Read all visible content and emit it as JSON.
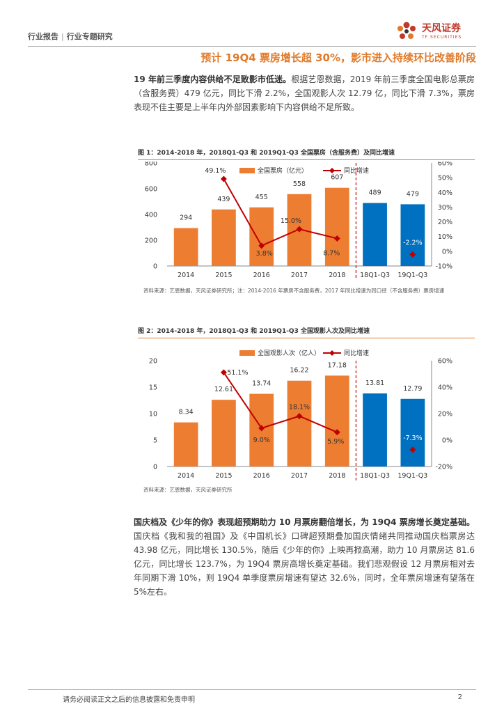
{
  "header": {
    "category": "行业报告",
    "subcategory": "行业专题研究",
    "logo_cn": "天风证券",
    "logo_en": "TF SECURITIES"
  },
  "headline": "预计 19Q4 票房增长超 30%，影市进入持续环比改善阶段",
  "para1": {
    "bold": "19 年前三季度内容供给不足致影市低迷。",
    "text": "根据艺恩数据，2019 年前三季度全国电影总票房（含服务费）479 亿元，同比下滑 2.2%，全国观影人次 12.79 亿，同比下滑 7.3%，票房表现不佳主要是上半年内外部因素影响下内容供给不足所致。"
  },
  "figure1": {
    "title": "图 1：2014-2018 年，2018Q1-Q3 和 2019Q1-Q3 全国票房（含服务费）及同比增速",
    "source": "资料来源：艺恩数据，天风证券研究所；注：2014-2016 年票房不含服务费，2017 年同比增速为同口径（不含服务费）票房增速"
  },
  "figure2": {
    "title": "图 2：2014-2018 年，2018Q1-Q3 和 2019Q1-Q3 全国观影人次及同比增速",
    "source": "资料来源：艺恩数据，天风证券研究所"
  },
  "chart_data": [
    {
      "type": "bar",
      "categories": [
        "2014",
        "2015",
        "2016",
        "2017",
        "2018",
        "18Q1-Q3",
        "19Q1-Q3"
      ],
      "series": [
        {
          "name": "全国票房（亿元）",
          "kind": "bar",
          "axis": "left",
          "values": [
            294,
            439,
            455,
            558,
            607,
            489,
            479
          ],
          "labels": [
            "294",
            "439",
            "455",
            "558",
            "607",
            "489",
            "479"
          ]
        },
        {
          "name": "同比增速",
          "kind": "line",
          "axis": "right",
          "values": [
            null,
            49.1,
            3.8,
            15.0,
            8.7,
            null,
            -2.2
          ],
          "labels": [
            "",
            "49.1%",
            "3.8%",
            "15.0%",
            "8.7%",
            "",
            "-2.2%"
          ]
        }
      ],
      "ylim": [
        0,
        800
      ],
      "yticks": [
        "0",
        "200",
        "400",
        "600",
        "800"
      ],
      "y2lim": [
        -10,
        60
      ],
      "y2ticks": [
        "-10%",
        "0%",
        "10%",
        "20%",
        "30%",
        "40%",
        "50%",
        "60%"
      ],
      "colors": {
        "bar": "#ED7D31",
        "bar_alt": "#0070C0",
        "line": "#C00000",
        "divider": "#C00000"
      }
    },
    {
      "type": "bar",
      "categories": [
        "2014",
        "2015",
        "2016",
        "2017",
        "2018",
        "18Q1-Q3",
        "19Q1-Q3"
      ],
      "series": [
        {
          "name": "全国观影人次（亿人）",
          "kind": "bar",
          "axis": "left",
          "values": [
            8.34,
            12.61,
            13.74,
            16.22,
            17.18,
            13.81,
            12.79
          ],
          "labels": [
            "8.34",
            "12.61",
            "13.74",
            "16.22",
            "17.18",
            "13.81",
            "12.79"
          ]
        },
        {
          "name": "同比增速",
          "kind": "line",
          "axis": "right",
          "values": [
            null,
            51.1,
            9.0,
            18.1,
            5.9,
            null,
            -7.3
          ],
          "labels": [
            "",
            "51.1%",
            "9.0%",
            "18.1%",
            "5.9%",
            "",
            "-7.3%"
          ]
        }
      ],
      "ylim": [
        0,
        20
      ],
      "yticks": [
        "0",
        "5",
        "10",
        "15",
        "20"
      ],
      "y2lim": [
        -20,
        60
      ],
      "y2ticks": [
        "-20%",
        "0%",
        "20%",
        "40%",
        "60%"
      ],
      "colors": {
        "bar": "#ED7D31",
        "bar_alt": "#0070C0",
        "line": "#C00000",
        "divider": "#C00000"
      }
    }
  ],
  "para2": {
    "bold": "国庆档及《少年的你》表现超预期助力 10 月票房翻倍增长，为 19Q4 票房增长奠定基础。",
    "text": "国庆档《我和我的祖国》及《中国机长》口碑超预期叠加国庆情绪共同推动国庆档票房达 43.98 亿元，同比增长 130.5%，随后《少年的你》上映再掀高潮，助力 10 月票房达 81.6 亿元，同比增长 123.7%，为 19Q4 票房高增长奠定基础。我们悲观假设 12 月票房相对去年同期下滑 10%，则 19Q4 单季度票房增速有望达 32.6%，同时，全年票房增速有望落在 5%左右。"
  },
  "footer": {
    "disclaimer": "请务必阅读正文之后的信息披露和免责申明",
    "page": "2"
  }
}
